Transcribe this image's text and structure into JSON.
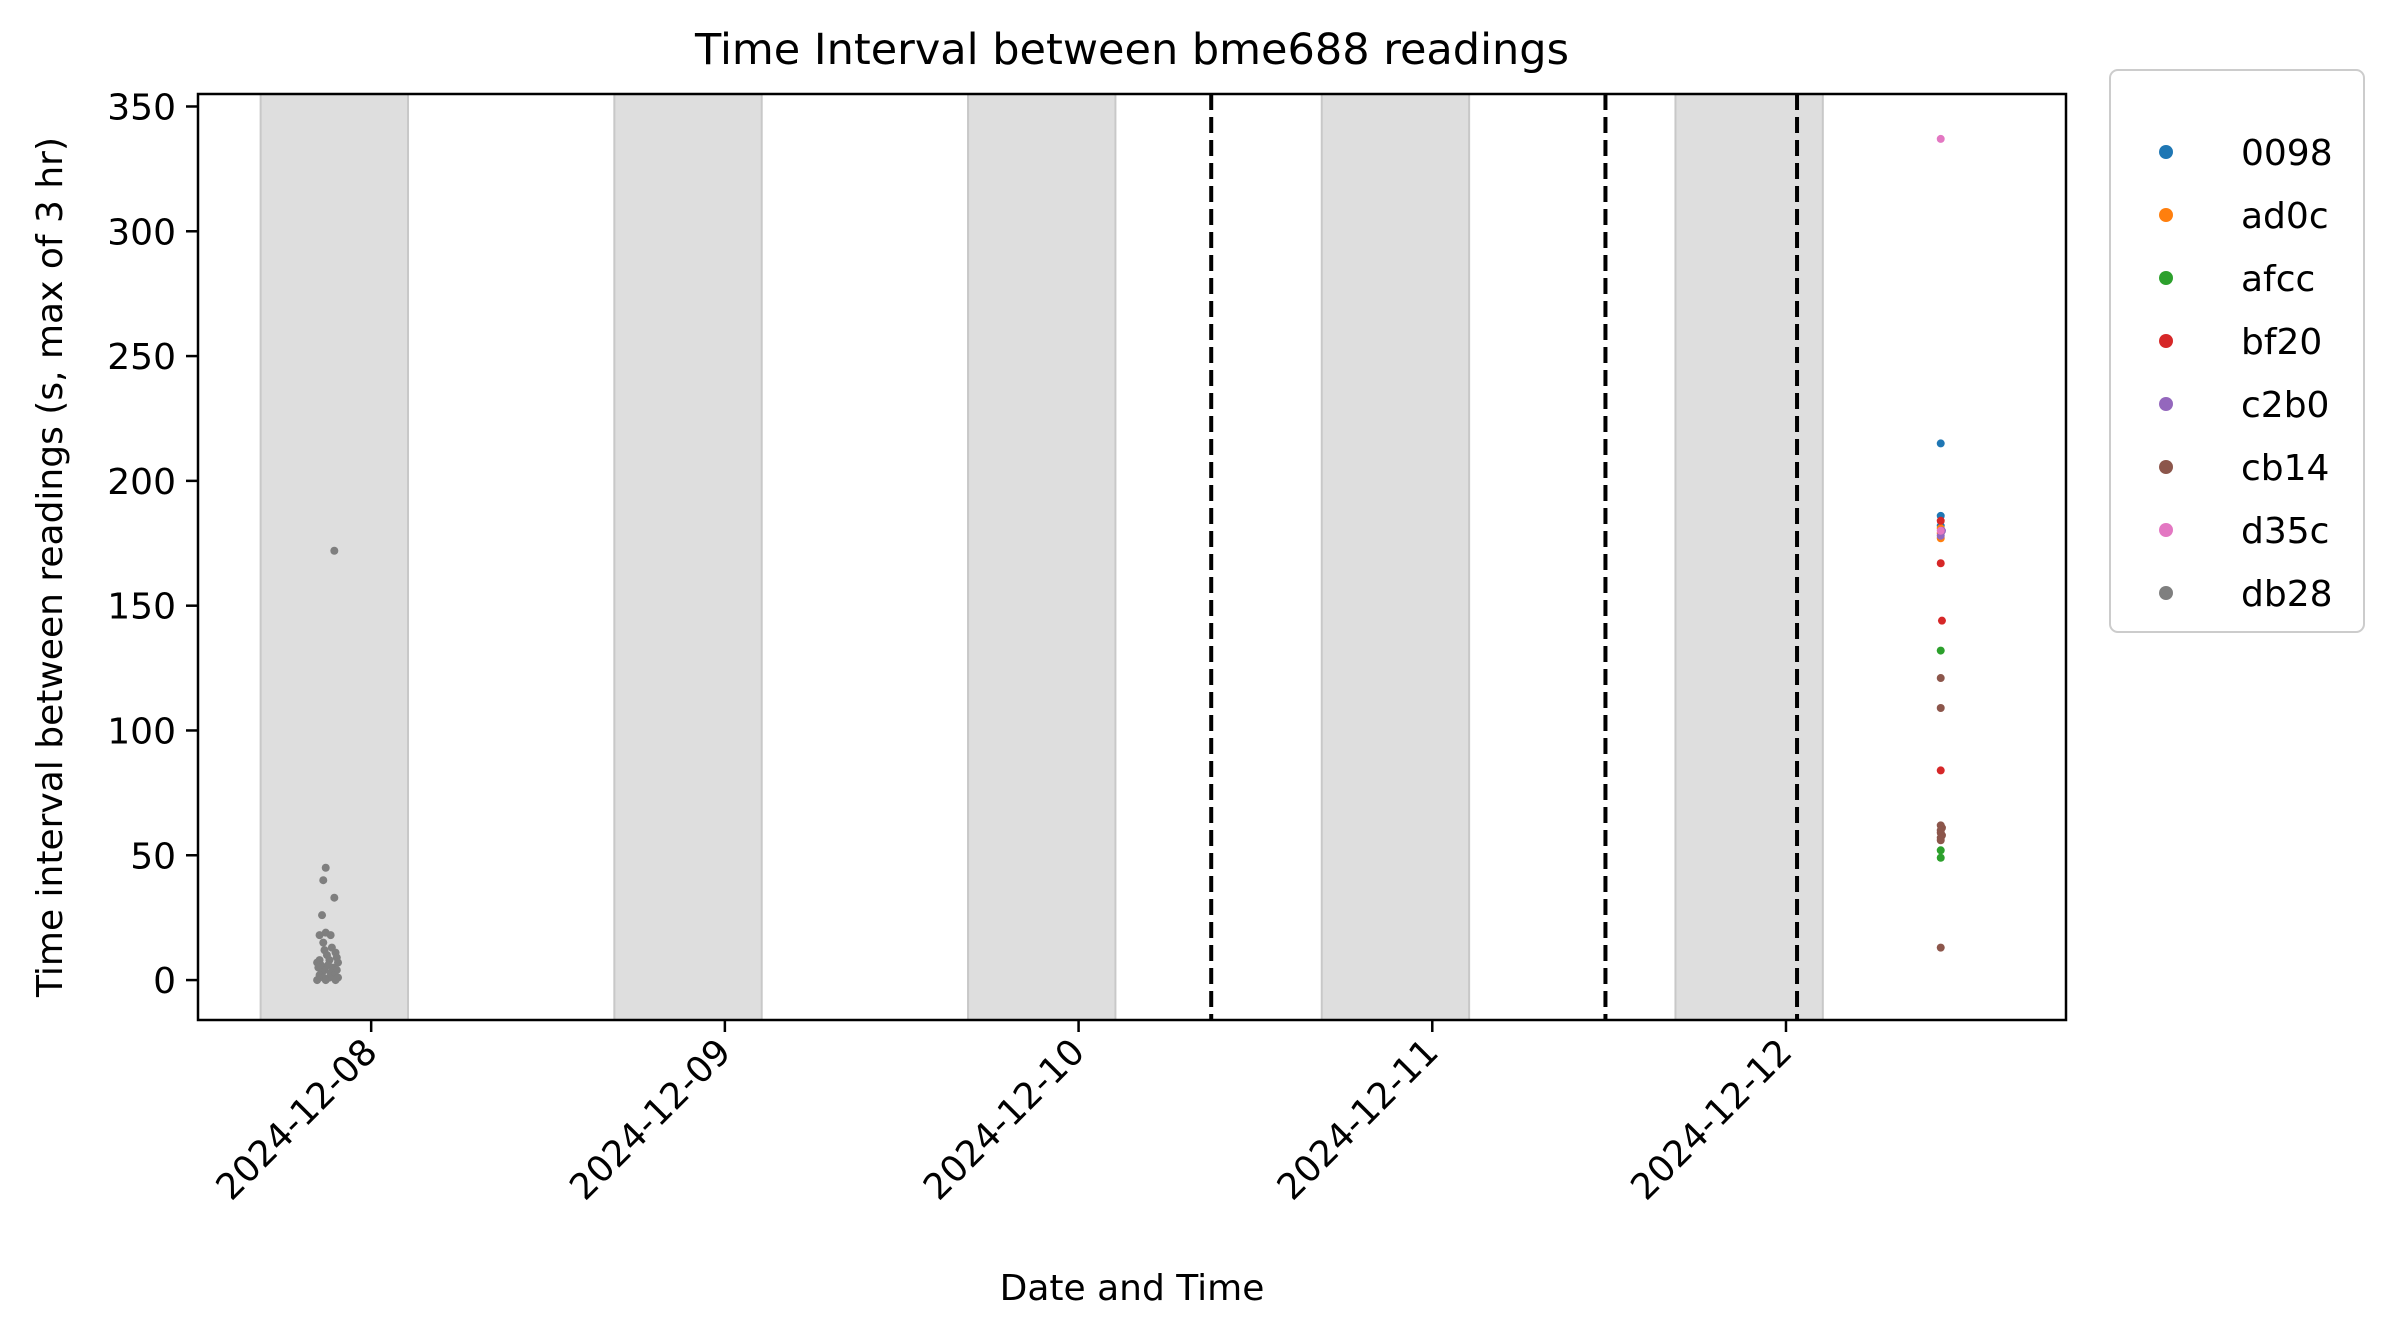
{
  "chart_data": {
    "type": "scatter",
    "title": "Time Interval between bme688 readings",
    "xlabel": "Date and Time",
    "ylabel": "Time interval between readings (s, max of 3 hr)",
    "x_ticks": [
      "2024-12-08",
      "2024-12-09",
      "2024-12-10",
      "2024-12-11",
      "2024-12-12"
    ],
    "y_ticks": [
      0,
      50,
      100,
      150,
      200,
      250,
      300,
      350
    ],
    "xlim": [
      "2024-12-07 12:15",
      "2024-12-12 19:00"
    ],
    "ylim": [
      -16,
      355
    ],
    "grid": false,
    "legend_position": "outside-right",
    "night_bands": [
      [
        "2024-12-07 16:30",
        "2024-12-08 02:30"
      ],
      [
        "2024-12-08 16:30",
        "2024-12-09 02:30"
      ],
      [
        "2024-12-09 16:30",
        "2024-12-10 02:30"
      ],
      [
        "2024-12-10 16:30",
        "2024-12-11 02:30"
      ],
      [
        "2024-12-11 16:30",
        "2024-12-12 02:30"
      ]
    ],
    "vertical_lines": [
      "2024-12-10 09:00",
      "2024-12-11 11:45",
      "2024-12-12 00:45"
    ],
    "series": [
      {
        "name": "0098",
        "color": "#1f77b4",
        "points": [
          [
            "2024-12-12 10:30",
            215
          ],
          [
            "2024-12-12 10:30",
            186
          ],
          [
            "2024-12-12 10:30",
            182
          ]
        ]
      },
      {
        "name": "ad0c",
        "color": "#ff7f0e",
        "points": [
          [
            "2024-12-12 10:30",
            181
          ],
          [
            "2024-12-12 10:30",
            179
          ],
          [
            "2024-12-12 10:30",
            177
          ]
        ]
      },
      {
        "name": "afcc",
        "color": "#2ca02c",
        "points": [
          [
            "2024-12-12 10:30",
            132
          ],
          [
            "2024-12-12 10:30",
            52
          ],
          [
            "2024-12-12 10:30",
            49
          ]
        ]
      },
      {
        "name": "bf20",
        "color": "#d62728",
        "points": [
          [
            "2024-12-12 10:30",
            184
          ],
          [
            "2024-12-12 10:30",
            167
          ],
          [
            "2024-12-12 10:35",
            144
          ],
          [
            "2024-12-12 10:30",
            84
          ]
        ]
      },
      {
        "name": "c2b0",
        "color": "#9467bd",
        "points": [
          [
            "2024-12-12 10:35",
            180
          ],
          [
            "2024-12-12 10:30",
            178
          ]
        ]
      },
      {
        "name": "cb14",
        "color": "#8c564b",
        "points": [
          [
            "2024-12-12 10:30",
            121
          ],
          [
            "2024-12-12 10:30",
            109
          ],
          [
            "2024-12-12 10:30",
            62
          ],
          [
            "2024-12-12 10:35",
            61
          ],
          [
            "2024-12-12 10:30",
            60
          ],
          [
            "2024-12-12 10:30",
            59
          ],
          [
            "2024-12-12 10:35",
            58
          ],
          [
            "2024-12-12 10:30",
            57
          ],
          [
            "2024-12-12 10:30",
            56
          ],
          [
            "2024-12-12 10:30",
            13
          ]
        ]
      },
      {
        "name": "d35c",
        "color": "#e377c2",
        "points": [
          [
            "2024-12-12 10:30",
            337
          ],
          [
            "2024-12-12 10:30",
            180
          ]
        ]
      },
      {
        "name": "db28",
        "color": "#7f7f7f",
        "points": [
          [
            "2024-12-07 21:30",
            172
          ],
          [
            "2024-12-07 20:55",
            45
          ],
          [
            "2024-12-07 20:45",
            40
          ],
          [
            "2024-12-07 21:30",
            33
          ],
          [
            "2024-12-07 20:40",
            26
          ],
          [
            "2024-12-07 20:30",
            18
          ],
          [
            "2024-12-07 20:55",
            19
          ],
          [
            "2024-12-07 21:15",
            18
          ],
          [
            "2024-12-07 20:45",
            15
          ],
          [
            "2024-12-07 21:20",
            13
          ],
          [
            "2024-12-07 20:50",
            12
          ],
          [
            "2024-12-07 21:35",
            11
          ],
          [
            "2024-12-07 21:00",
            10
          ],
          [
            "2024-12-07 21:40",
            9
          ],
          [
            "2024-12-07 20:30",
            8
          ],
          [
            "2024-12-07 21:10",
            8
          ],
          [
            "2024-12-07 20:20",
            7
          ],
          [
            "2024-12-07 21:45",
            7
          ],
          [
            "2024-12-07 20:35",
            6
          ],
          [
            "2024-12-07 21:05",
            6
          ],
          [
            "2024-12-07 21:25",
            5
          ],
          [
            "2024-12-07 20:25",
            5
          ],
          [
            "2024-12-07 20:50",
            4
          ],
          [
            "2024-12-07 21:40",
            4
          ],
          [
            "2024-12-07 20:40",
            3
          ],
          [
            "2024-12-07 21:15",
            3
          ],
          [
            "2024-12-07 20:30",
            2
          ],
          [
            "2024-12-07 21:30",
            2
          ],
          [
            "2024-12-07 20:45",
            1
          ],
          [
            "2024-12-07 21:10",
            1
          ],
          [
            "2024-12-07 21:45",
            1
          ],
          [
            "2024-12-07 20:55",
            0
          ],
          [
            "2024-12-07 21:35",
            0
          ],
          [
            "2024-12-07 20:20",
            0
          ]
        ]
      }
    ]
  }
}
